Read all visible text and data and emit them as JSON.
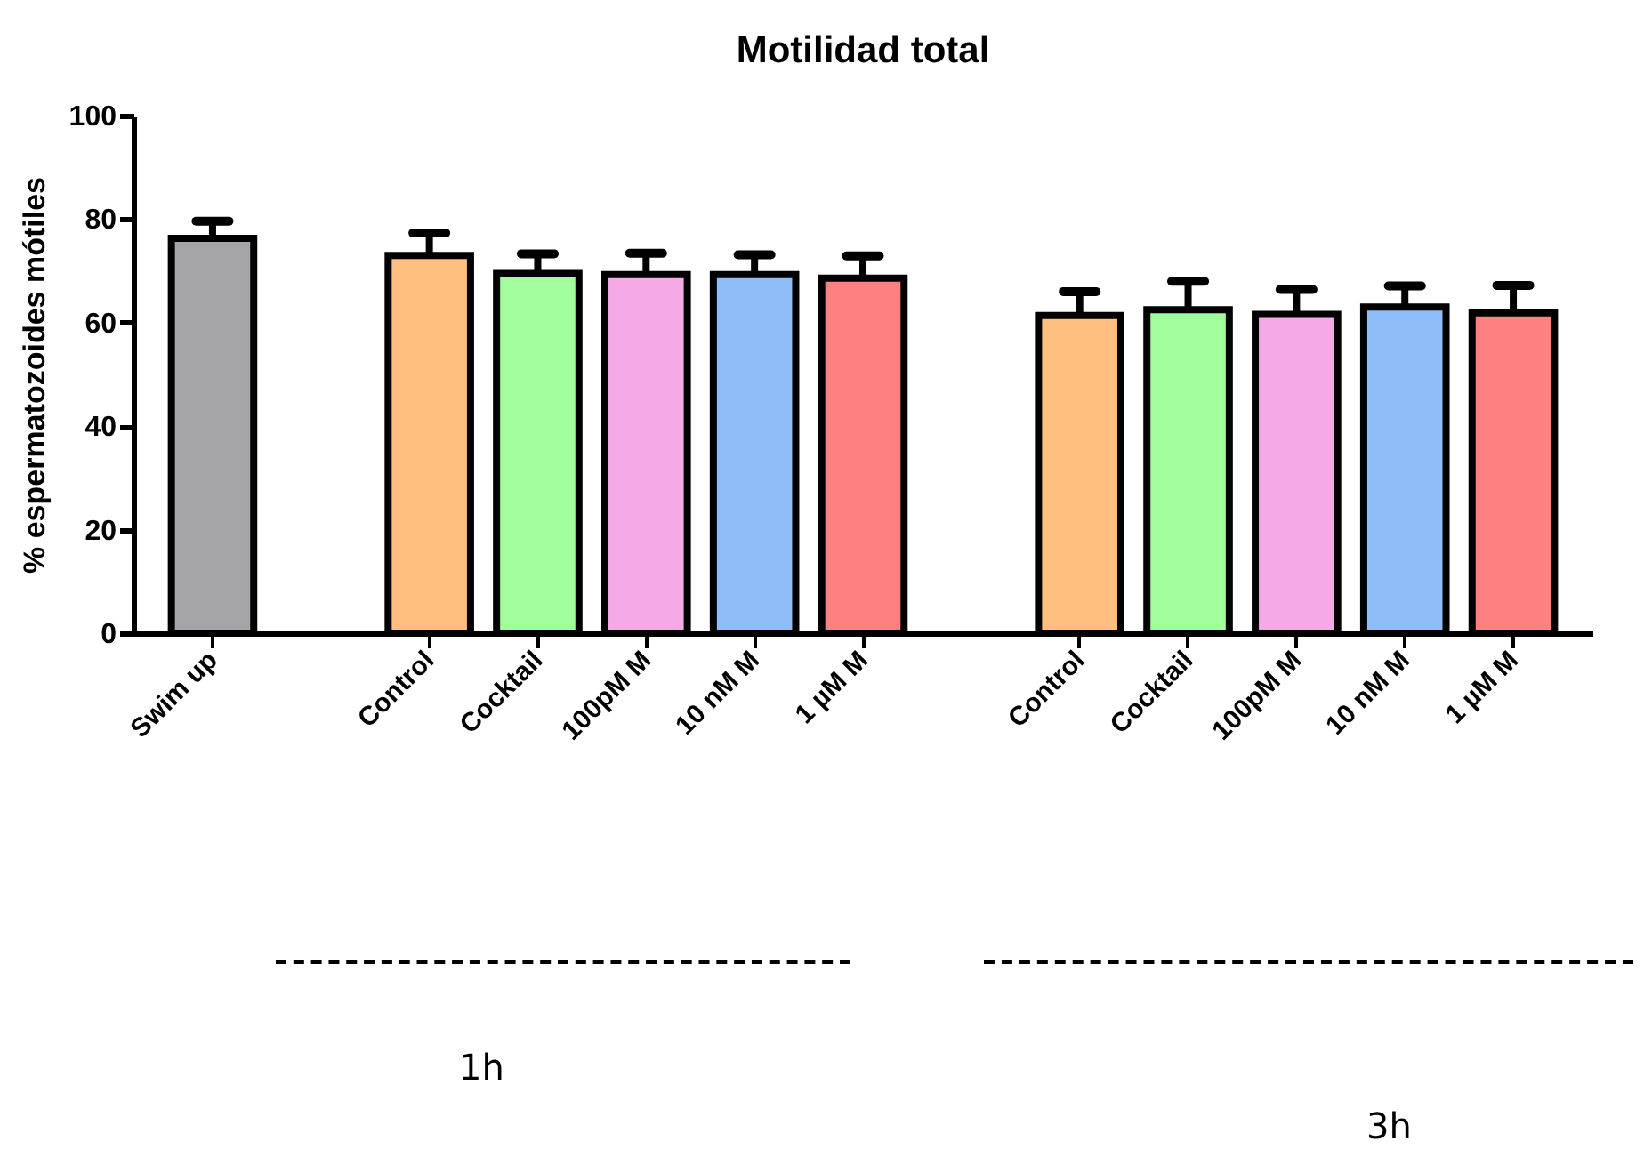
{
  "chart_data": {
    "type": "bar",
    "title": "Motilidad total",
    "ylabel": "% espermatozoides mótiles",
    "categories": [
      "Swim up",
      null,
      "Control",
      "Cocktail",
      "100pM M",
      "10 nM M",
      "1 µM M",
      null,
      "Control",
      "Cocktail",
      "100pM M",
      "10 nM M",
      "1 µM M"
    ],
    "values": [
      76.3,
      null,
      73.0,
      69.5,
      69.3,
      69.3,
      68.6,
      null,
      61.4,
      62.5,
      61.6,
      63.0,
      61.9
    ],
    "errors": [
      3.3,
      null,
      4.3,
      3.8,
      4.1,
      3.8,
      4.3,
      null,
      4.6,
      5.5,
      4.8,
      4.1,
      5.3
    ],
    "colors": [
      "#a5a4a9",
      null,
      "#ffbf80",
      "#a0ff9c",
      "#f5a9e6",
      "#8fbdf7",
      "#ff8080",
      null,
      "#ffbf80",
      "#a0ff9c",
      "#f5a9e6",
      "#8fbdf7",
      "#ff8080"
    ],
    "ylim": [
      0,
      100
    ],
    "yticks": [
      0,
      20,
      40,
      60,
      80,
      100
    ],
    "grid": false,
    "annotations": [
      "1h",
      "3h"
    ]
  }
}
